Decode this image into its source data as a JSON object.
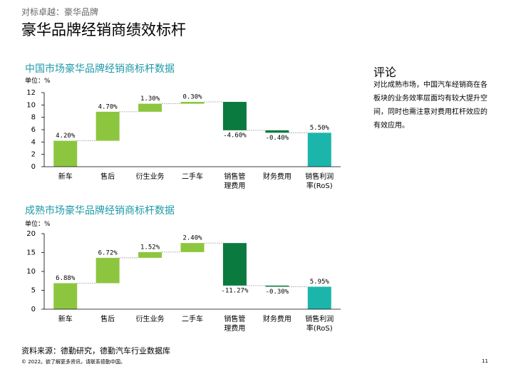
{
  "header": {
    "kicker": "对标卓越：豪华品牌",
    "title": "豪华品牌经销商绩效标杆"
  },
  "chart_data": [
    {
      "type": "waterfall",
      "title": "中国市场豪华品牌经销商标杆数据",
      "unit": "单位：%",
      "categories": [
        "新车",
        "售后",
        "衍生业务",
        "二手车",
        "销售管\n理费用",
        "财务费用",
        "销售利润\n率(RoS)"
      ],
      "values": [
        4.2,
        4.7,
        1.3,
        0.3,
        -4.6,
        -0.4,
        5.5
      ],
      "value_labels": [
        "4.20%",
        "4.70%",
        "1.30%",
        "0.30%",
        "-4.60%",
        "-0.40%",
        "5.50%"
      ],
      "colors": {
        "increase": "#8cc63f",
        "decrease": "#0b7a3f",
        "total": "#1cb5ac"
      },
      "ylim": [
        0,
        12
      ],
      "yticks": [
        0,
        2,
        4,
        6,
        8,
        10,
        12
      ]
    },
    {
      "type": "waterfall",
      "title": "成熟市场豪华品牌经销商标杆数据",
      "unit": "单位：%",
      "categories": [
        "新车",
        "售后",
        "衍生业务",
        "二手车",
        "销售管\n理费用",
        "财务费用",
        "销售利润\n率(RoS)"
      ],
      "values": [
        6.88,
        6.72,
        1.52,
        2.4,
        -11.27,
        -0.3,
        5.95
      ],
      "value_labels": [
        "6.88%",
        "6.72%",
        "1.52%",
        "2.40%",
        "-11.27%",
        "-0.30%",
        "5.95%"
      ],
      "colors": {
        "increase": "#8cc63f",
        "decrease": "#0b7a3f",
        "total": "#1cb5ac"
      },
      "ylim": [
        0,
        20
      ],
      "yticks": [
        0,
        5,
        10,
        15,
        20
      ]
    }
  ],
  "comment": {
    "title": "评论",
    "text": "对比成熟市场，中国汽车经销商在各板块的业务效率层面均有较大提升空间，同时也需注意对费用杠杆效应的有效应用。"
  },
  "source": "资料来源：德勤研究，德勤汽车行业数据库",
  "footer": {
    "copyright": "© 2022。欲了解更多资讯，请联系德勤中国。",
    "page": "11"
  }
}
